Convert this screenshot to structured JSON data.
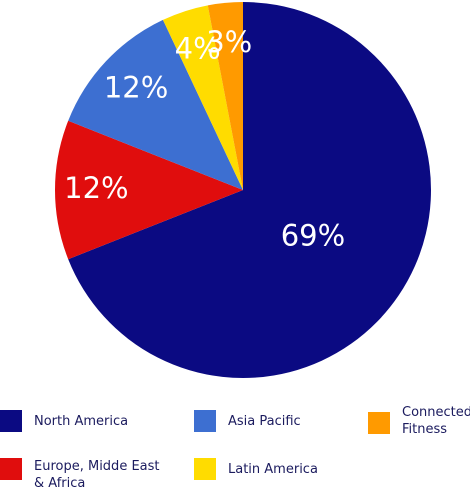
{
  "chart_data": {
    "type": "pie",
    "categories": [
      "North America",
      "Europe, Midde East & Africa",
      "Asia Pacific",
      "Latin America",
      "Connected Fitness"
    ],
    "values": [
      69,
      12,
      12,
      4,
      3
    ],
    "value_labels": [
      "69%",
      "12%",
      "12%",
      "4%",
      "3%"
    ],
    "colors": [
      "#0b0a82",
      "#e00d0d",
      "#3d6fd1",
      "#ffdc00",
      "#ff9a00"
    ]
  }
}
